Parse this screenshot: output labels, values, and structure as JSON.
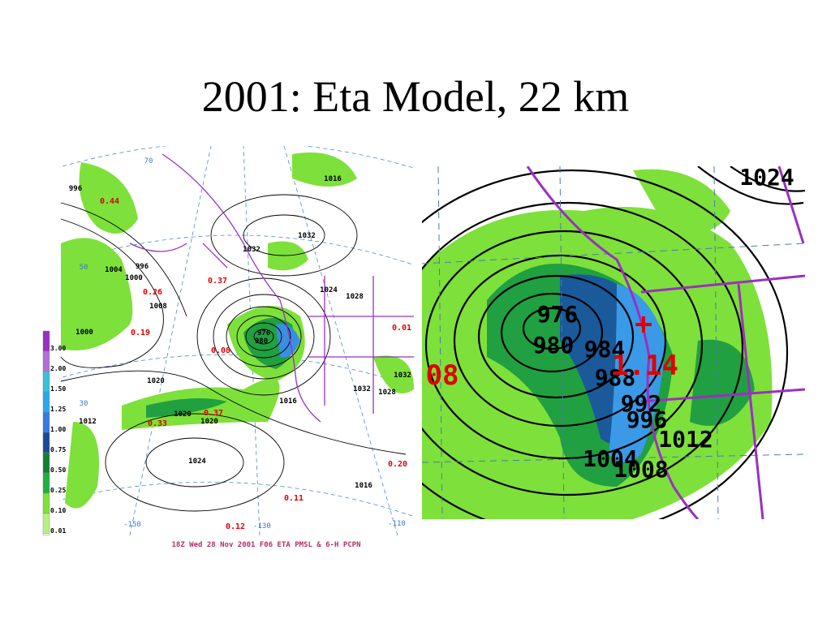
{
  "title": "2001:  Eta Model, 22 km",
  "left_map": {
    "isobar_labels": [
      "996",
      "1004",
      "996",
      "1000",
      "1008",
      "1032",
      "1032",
      "1024",
      "1028",
      "976",
      "980",
      "1020",
      "1020",
      "1020",
      "1016",
      "1024",
      "1016",
      "1032",
      "1028",
      "1012",
      "1000",
      "1032",
      "1016"
    ],
    "precip_labels": [
      "0.44",
      "0.37",
      "0.26",
      "0.19",
      "0.08",
      "0.33",
      "0.37",
      "0.11",
      "0.12",
      "0.20",
      "0.01"
    ],
    "grid_labels": [
      "70",
      "-150",
      "-130",
      "-110",
      "30",
      "50"
    ],
    "legend": [
      "3.00",
      "2.00",
      "1.50",
      "1.25",
      "1.00",
      "0.75",
      "0.50",
      "0.25",
      "0.10",
      "0.01"
    ],
    "caption": "18Z Wed 28 Nov 2001 F06 ETA PMSL & 6-H PCPN"
  },
  "right_map": {
    "isobar_labels": [
      "1024",
      "976",
      "980",
      "984",
      "988",
      "992",
      "996",
      "1012",
      "1004",
      "1008"
    ],
    "precip_labels": [
      "1.14",
      "08"
    ]
  }
}
